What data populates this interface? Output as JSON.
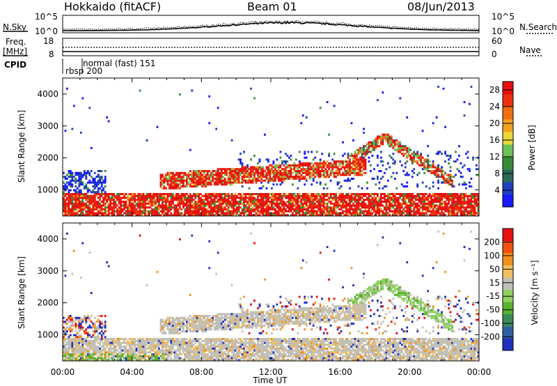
{
  "header": {
    "station": "Hokkaido (fitACF)",
    "beam": "Beam 01",
    "date": "08/Jun/2013"
  },
  "noise_panel": {
    "left_label": "N.Sky",
    "left_ticks": [
      "10^5",
      "10^0"
    ],
    "right_ticks": [
      "10^5",
      "10^0"
    ],
    "right_label": "N.Search"
  },
  "freq_panel": {
    "left_label_1": "Freq.",
    "left_label_2": "[MHz]",
    "left_ticks": [
      "18",
      "8"
    ],
    "right_ticks": [
      "60",
      "0"
    ],
    "right_label": "Nave"
  },
  "cpid_panel": {
    "label": "CPID",
    "programs": [
      {
        "name": "normal (fast) 151"
      },
      {
        "name": "rbsp 200"
      }
    ]
  },
  "chart_data": [
    {
      "type": "heatmap",
      "name": "power",
      "xlabel": "",
      "ylabel": "Slant Range [km]",
      "x_ticks": [
        "00:00",
        "04:00",
        "08:00",
        "12:00",
        "16:00",
        "20:00",
        "00:00"
      ],
      "xlim_hours": [
        0,
        24
      ],
      "y_ticks": [
        1000,
        2000,
        3000,
        4000
      ],
      "ylim_km": [
        180,
        4500
      ],
      "colorbar": {
        "label": "Power [dB]",
        "ticks": [
          4,
          8,
          12,
          16,
          20,
          24,
          28
        ],
        "range": [
          0,
          30
        ],
        "colors": [
          "#1a1aff",
          "#2040c0",
          "#2b6a5a",
          "#3a8a3a",
          "#6cc05a",
          "#e8d83a",
          "#f0a020",
          "#f07010",
          "#ee3010",
          "#e81010"
        ]
      },
      "scatter_features": [
        {
          "desc": "low-range continuous echoes",
          "t_start": 0,
          "t_end": 24,
          "r_min": 180,
          "r_max": 900,
          "level": "high"
        },
        {
          "desc": "band near 1500 km",
          "t_start": 5.5,
          "t_end": 17.5,
          "r_min": 1200,
          "r_max": 1900,
          "level": "high"
        },
        {
          "desc": "arc peaking 2600 km",
          "t_start": 16,
          "t_end": 22,
          "r_min": 1800,
          "r_max": 2700,
          "level": "high"
        },
        {
          "desc": "early weak echoes",
          "t_start": 0,
          "t_end": 2,
          "r_min": 700,
          "r_max": 1600,
          "level": "low"
        }
      ]
    },
    {
      "type": "heatmap",
      "name": "velocity",
      "xlabel": "Time UT",
      "ylabel": "Slant Range [km]",
      "x_ticks": [
        "00:00",
        "04:00",
        "08:00",
        "12:00",
        "16:00",
        "20:00",
        "00:00"
      ],
      "xlim_hours": [
        0,
        24
      ],
      "y_ticks": [
        1000,
        2000,
        3000,
        4000
      ],
      "ylim_km": [
        180,
        4500
      ],
      "colorbar": {
        "label": "Velocity [m s⁻¹]",
        "ticks": [
          200,
          100,
          50,
          15,
          -15,
          -50,
          -100,
          -200
        ],
        "range": [
          -250,
          250
        ],
        "colors": [
          "#2030c0",
          "#3060a0",
          "#3a8a5a",
          "#5ab030",
          "#8fd060",
          "#c0c0b8",
          "#f0c060",
          "#f09020",
          "#f05010",
          "#e81010"
        ]
      }
    }
  ]
}
